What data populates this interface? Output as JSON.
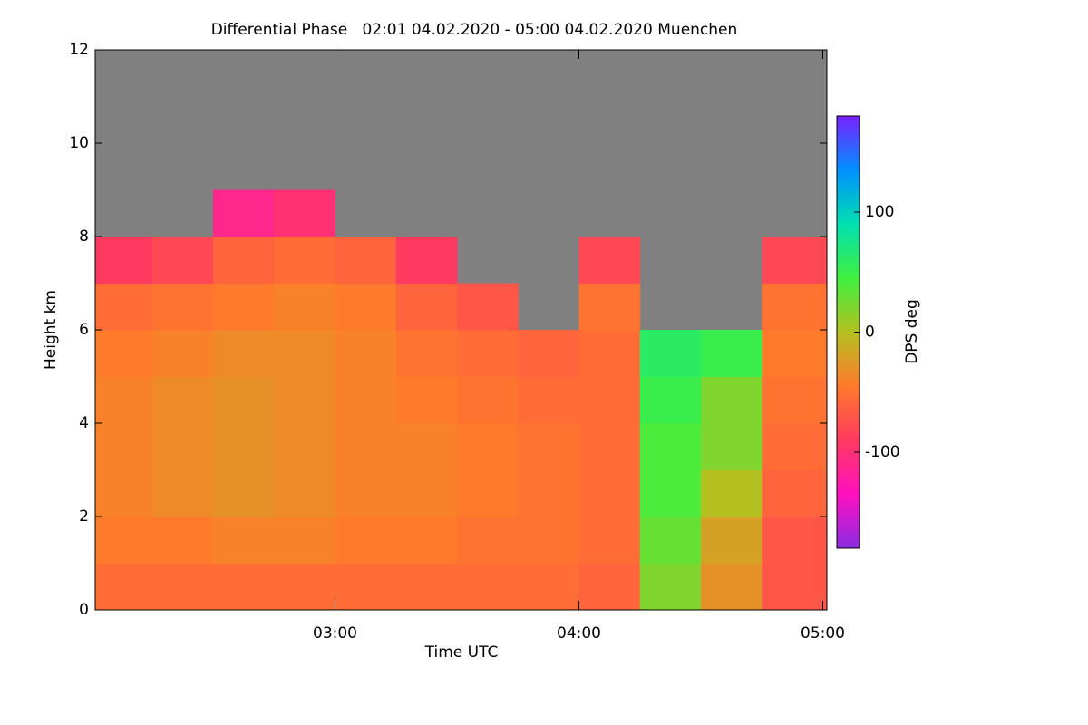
{
  "chart_data": {
    "type": "heatmap",
    "title": "Differential Phase   02:01 04.02.2020 - 05:00 04.02.2020 Muenchen",
    "x_label": "Time UTC",
    "y_label": "Height km",
    "colorbar_label": "DPS deg",
    "xbins": [
      2.0167,
      2.25,
      2.5,
      2.75,
      3.0,
      3.25,
      3.5,
      3.75,
      4.0,
      4.25,
      4.5,
      4.75,
      5.0167
    ],
    "ybins": [
      0,
      1,
      2,
      3,
      4,
      5,
      6,
      7,
      8,
      9,
      10,
      11,
      12
    ],
    "z": [
      [
        -55,
        -55,
        -55,
        -55,
        -55,
        -55,
        -55,
        -55,
        -60,
        20,
        -30,
        -70
      ],
      [
        -45,
        -45,
        -40,
        -40,
        -45,
        -45,
        -50,
        -50,
        -55,
        30,
        -20,
        -70
      ],
      [
        -40,
        -35,
        -30,
        -35,
        -40,
        -40,
        -45,
        -50,
        -55,
        40,
        0,
        -60
      ],
      [
        -40,
        -35,
        -30,
        -35,
        -40,
        -40,
        -45,
        -50,
        -55,
        40,
        20,
        -55
      ],
      [
        -40,
        -35,
        -30,
        -35,
        -40,
        -45,
        -50,
        -55,
        -55,
        50,
        20,
        -50
      ],
      [
        -45,
        -40,
        -35,
        -35,
        -40,
        -50,
        -55,
        -60,
        -55,
        60,
        50,
        -45
      ],
      [
        -55,
        -50,
        -45,
        -40,
        -45,
        -60,
        -70,
        null,
        -50,
        null,
        null,
        -50
      ],
      [
        -90,
        -80,
        -60,
        -55,
        -60,
        -90,
        null,
        null,
        -80,
        null,
        null,
        -80
      ],
      [
        null,
        null,
        -110,
        -100,
        null,
        null,
        null,
        null,
        null,
        null,
        null,
        null
      ],
      [
        null,
        null,
        null,
        null,
        null,
        null,
        null,
        null,
        null,
        null,
        null,
        null
      ],
      [
        null,
        null,
        null,
        null,
        null,
        null,
        null,
        null,
        null,
        null,
        null,
        null
      ],
      [
        null,
        null,
        null,
        null,
        null,
        null,
        null,
        null,
        null,
        null,
        null,
        null
      ]
    ],
    "xlim": [
      2.0167,
      5.0167
    ],
    "xticks": [
      {
        "value": 3,
        "label": "03:00"
      },
      {
        "value": 4,
        "label": "04:00"
      },
      {
        "value": 5,
        "label": "05:00"
      }
    ],
    "ylim": [
      0,
      12
    ],
    "yticks": [
      0,
      2,
      4,
      6,
      8,
      10,
      12
    ],
    "clim": [
      -180,
      180
    ],
    "cticks": [
      -100,
      0,
      100
    ],
    "colormap": [
      "#8a2be2",
      "#ff10c0",
      "#ff3a60",
      "#ff7a2a",
      "#b4c020",
      "#40f040",
      "#00e0b0",
      "#0090ff",
      "#7a20ff"
    ],
    "missing_color": "#808080"
  }
}
